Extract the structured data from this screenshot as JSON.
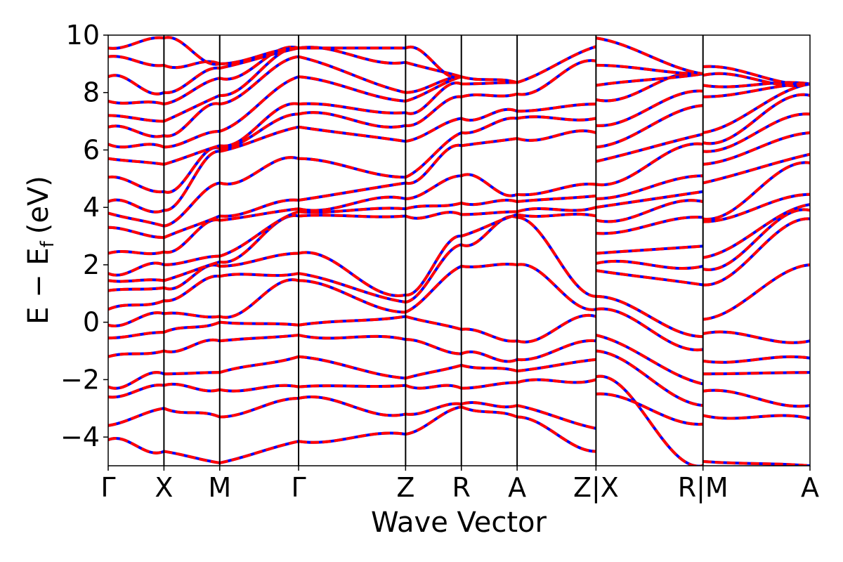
{
  "chart_data": {
    "type": "line",
    "xlabel": "Wave Vector",
    "ylabel_main": "E − E",
    "ylabel_sub": "f",
    "ylabel_unit": "(eV)",
    "ylim": [
      -5,
      10
    ],
    "yticks": [
      10,
      8,
      6,
      4,
      2,
      0,
      -2,
      -4
    ],
    "ytick_labels": [
      "10",
      "8",
      "6",
      "4",
      "2",
      "0",
      "−2",
      "−4"
    ],
    "grid": false,
    "kpath_ticks": [
      {
        "label": "Γ",
        "k": 0.0
      },
      {
        "label": "X",
        "k": 0.5
      },
      {
        "label": "M",
        "k": 1.0
      },
      {
        "label": "Γ",
        "k": 1.7071
      },
      {
        "label": "Z",
        "k": 2.6664
      },
      {
        "label": "R",
        "k": 3.1664
      },
      {
        "label": "A",
        "k": 3.6664
      },
      {
        "label": "Z|X",
        "k": 4.3735
      },
      {
        "label": "R|M",
        "k": 5.3328
      },
      {
        "label": "A",
        "k": 6.2921
      }
    ],
    "series": [
      {
        "color": "#0000ff",
        "style": "solid"
      },
      {
        "color": "#ff0000",
        "style": "dashed"
      }
    ],
    "segment_bands": [
      {
        "from": "Γ",
        "to": "X",
        "start": [
          -4.1,
          -3.6,
          -2.6,
          -2.25,
          -1.2,
          -0.55,
          -0.1,
          0.45,
          1.1,
          1.45,
          1.7,
          2.4,
          3.3,
          3.8,
          4.2,
          5.05,
          5.7,
          6.2,
          6.8,
          7.2,
          7.7,
          8.55,
          9.25,
          9.55
        ],
        "end": [
          -4.5,
          -3.0,
          -2.2,
          -1.8,
          -1.0,
          -0.35,
          0.3,
          0.75,
          1.2,
          1.45,
          2.0,
          2.45,
          2.95,
          3.35,
          3.9,
          4.55,
          5.5,
          6.1,
          6.5,
          7.0,
          7.6,
          8.0,
          8.95,
          9.9
        ]
      },
      {
        "from": "X",
        "to": "M",
        "start": [
          -4.5,
          -3.0,
          -2.2,
          -1.8,
          -1.0,
          -0.35,
          0.3,
          0.75,
          1.2,
          1.45,
          2.0,
          2.45,
          2.95,
          3.35,
          3.9,
          4.55,
          5.5,
          6.1,
          6.5,
          7.0,
          7.6,
          8.0,
          8.95,
          9.9
        ],
        "end": [
          -4.9,
          -3.3,
          -2.35,
          -1.75,
          -0.65,
          0.0,
          0.2,
          1.6,
          1.95,
          2.1,
          2.3,
          3.55,
          3.7,
          4.85,
          5.95,
          6.05,
          6.15,
          6.65,
          7.6,
          7.9,
          8.5,
          8.85,
          9.0
        ]
      },
      {
        "from": "M",
        "to": "Γ",
        "start": [
          -4.9,
          -3.3,
          -2.35,
          -1.75,
          -0.65,
          0.0,
          0.2,
          1.6,
          1.95,
          2.1,
          2.3,
          3.55,
          3.7,
          4.85,
          5.95,
          6.05,
          6.15,
          6.65,
          7.6,
          7.9,
          8.5,
          8.85,
          9.0
        ],
        "end": [
          -4.15,
          -2.65,
          -2.25,
          -1.2,
          -0.45,
          -0.1,
          1.45,
          1.7,
          2.4,
          3.7,
          3.85,
          3.95,
          4.25,
          5.7,
          6.8,
          7.25,
          7.6,
          8.55,
          9.25,
          9.55
        ]
      },
      {
        "from": "Γ",
        "to": "Z",
        "start": [
          -4.15,
          -2.65,
          -2.25,
          -1.2,
          -0.45,
          -0.1,
          1.45,
          1.7,
          2.4,
          3.7,
          3.85,
          3.95,
          4.25,
          5.7,
          6.8,
          7.25,
          7.6,
          8.55,
          9.25,
          9.55
        ],
        "end": [
          -3.9,
          -3.2,
          -2.2,
          -1.95,
          -0.6,
          0.2,
          0.35,
          0.7,
          0.95,
          3.7,
          3.95,
          4.3,
          4.85,
          5.05,
          6.3,
          6.85,
          7.3,
          7.7,
          8.0,
          9.05,
          9.55
        ]
      },
      {
        "from": "Z",
        "to": "R",
        "start": [
          -3.9,
          -3.2,
          -2.2,
          -1.95,
          -0.6,
          0.2,
          0.35,
          0.7,
          0.95,
          3.7,
          3.95,
          4.3,
          4.85,
          5.05,
          6.3,
          6.85,
          7.3,
          7.7,
          8.0,
          9.05,
          9.55
        ],
        "end": [
          -2.95,
          -2.85,
          -2.3,
          -1.5,
          -1.1,
          -0.25,
          1.95,
          2.7,
          3.0,
          3.75,
          4.15,
          5.1,
          6.15,
          6.6,
          7.1,
          7.85,
          8.3,
          8.55
        ]
      },
      {
        "from": "R",
        "to": "A",
        "start": [
          -2.95,
          -2.85,
          -2.3,
          -1.5,
          -1.1,
          -0.25,
          1.95,
          2.7,
          3.0,
          3.75,
          4.15,
          5.1,
          6.15,
          6.6,
          7.1,
          7.85,
          8.3,
          8.55
        ],
        "end": [
          -3.3,
          -2.9,
          -2.1,
          -1.7,
          -1.3,
          -0.65,
          2.0,
          3.65,
          3.75,
          3.85,
          4.2,
          4.45,
          6.4,
          7.1,
          7.35,
          7.95,
          8.35
        ]
      },
      {
        "from": "A",
        "to": "Z",
        "start": [
          -3.3,
          -2.9,
          -2.1,
          -1.7,
          -1.3,
          -0.65,
          2.0,
          3.65,
          3.75,
          3.85,
          4.2,
          4.45,
          6.4,
          7.1,
          7.35,
          7.95,
          8.35
        ],
        "end": [
          -4.5,
          -3.7,
          -2.0,
          -1.3,
          -0.65,
          0.2,
          0.45,
          0.9,
          3.7,
          4.0,
          4.4,
          4.8,
          6.6,
          7.1,
          7.6,
          9.1,
          9.6
        ]
      },
      {
        "from": "X",
        "to": "R",
        "start": [
          -1.9,
          -2.5,
          -1.0,
          -0.45,
          0.45,
          0.9,
          1.8,
          2.05,
          2.4,
          3.1,
          3.55,
          4.0,
          4.3,
          4.8,
          5.6,
          6.1,
          6.85,
          7.75,
          8.25,
          8.95,
          9.9
        ],
        "end": [
          -5.0,
          -3.55,
          -2.9,
          -2.15,
          -0.95,
          -0.5,
          1.3,
          1.95,
          2.65,
          3.65,
          4.2,
          4.55,
          5.1,
          6.2,
          6.55,
          7.55,
          8.05,
          8.65
        ]
      },
      {
        "from": "M",
        "to": "A",
        "start": [
          -4.85,
          -3.25,
          -2.4,
          -1.8,
          -1.35,
          -0.4,
          0.1,
          1.3,
          1.85,
          2.25,
          3.5,
          3.6,
          4.85,
          5.5,
          5.95,
          6.25,
          6.6,
          7.85,
          8.25,
          8.6,
          8.9
        ],
        "end": [
          -5.0,
          -3.35,
          -2.9,
          -1.75,
          -1.25,
          -0.65,
          2.0,
          3.6,
          3.9,
          4.1,
          4.45,
          5.55,
          5.85,
          6.6,
          7.25,
          7.9,
          8.3
        ]
      }
    ]
  }
}
